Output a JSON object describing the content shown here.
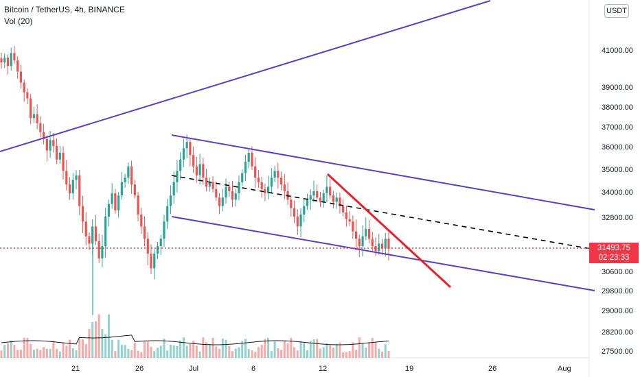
{
  "header": {
    "symbol_line": "Bitcoin / TetherUS, 4h, BINANCE",
    "indicator_line": "Vol (20)"
  },
  "currency_button": "USDT",
  "price_tag": {
    "price": "31493.75",
    "countdown": "02:23:33"
  },
  "colors": {
    "up_candle": "#26a69a",
    "down_candle": "#ef5350",
    "channel_lines": "#5b3fbf",
    "resistance_line": "#e8202a",
    "midline": "#000000",
    "price_line": "#f23645"
  },
  "chart_data": {
    "type": "candlestick",
    "title": "Bitcoin / TetherUS, 4h, BINANCE",
    "y_axis_ticks": [
      "41000.00",
      "39000.00",
      "38000.00",
      "37000.00",
      "36000.00",
      "35000.00",
      "34000.00",
      "32800.00",
      "30600.00",
      "29800.00",
      "29000.00",
      "28200.00",
      "27500.00"
    ],
    "x_axis_ticks": [
      "21",
      "26",
      "Jul",
      "6",
      "12",
      "19",
      "26",
      "Aug"
    ],
    "last_price": 31493.75,
    "candles_close": [
      40300,
      40550,
      40100,
      40800,
      40400,
      39800,
      39200,
      38700,
      38400,
      37400,
      37600,
      37150,
      36700,
      36350,
      35800,
      36300,
      36000,
      35400,
      35700,
      34900,
      34300,
      33900,
      34500,
      34700,
      33300,
      32600,
      32000,
      31700,
      32400,
      31800,
      31100,
      31600,
      32800,
      33400,
      33900,
      33100,
      33800,
      34400,
      34600,
      35100,
      34300,
      33800,
      32900,
      32400,
      31900,
      31300,
      30700,
      31300,
      31600,
      31900,
      32600,
      33300,
      33800,
      34400,
      34900,
      35400,
      35900,
      36200,
      35600,
      35100,
      34700,
      35200,
      34600,
      34200,
      34400,
      34100,
      33700,
      33300,
      33700,
      34200,
      34000,
      33600,
      33900,
      34400,
      34800,
      35300,
      35700,
      35100,
      34600,
      34400,
      34100,
      33900,
      34200,
      34600,
      34900,
      34600,
      34300,
      34000,
      33600,
      33200,
      32800,
      32400,
      32900,
      33300,
      33600,
      33800,
      34000,
      33700,
      33500,
      33900,
      34200,
      33800,
      33500,
      33700,
      33300,
      33000,
      32700,
      32600,
      32200,
      31900,
      31600,
      32000,
      32300,
      31900,
      31600,
      31400,
      31700,
      31500,
      31900,
      31493.75
    ],
    "volume_ma": "Vol (20)"
  }
}
